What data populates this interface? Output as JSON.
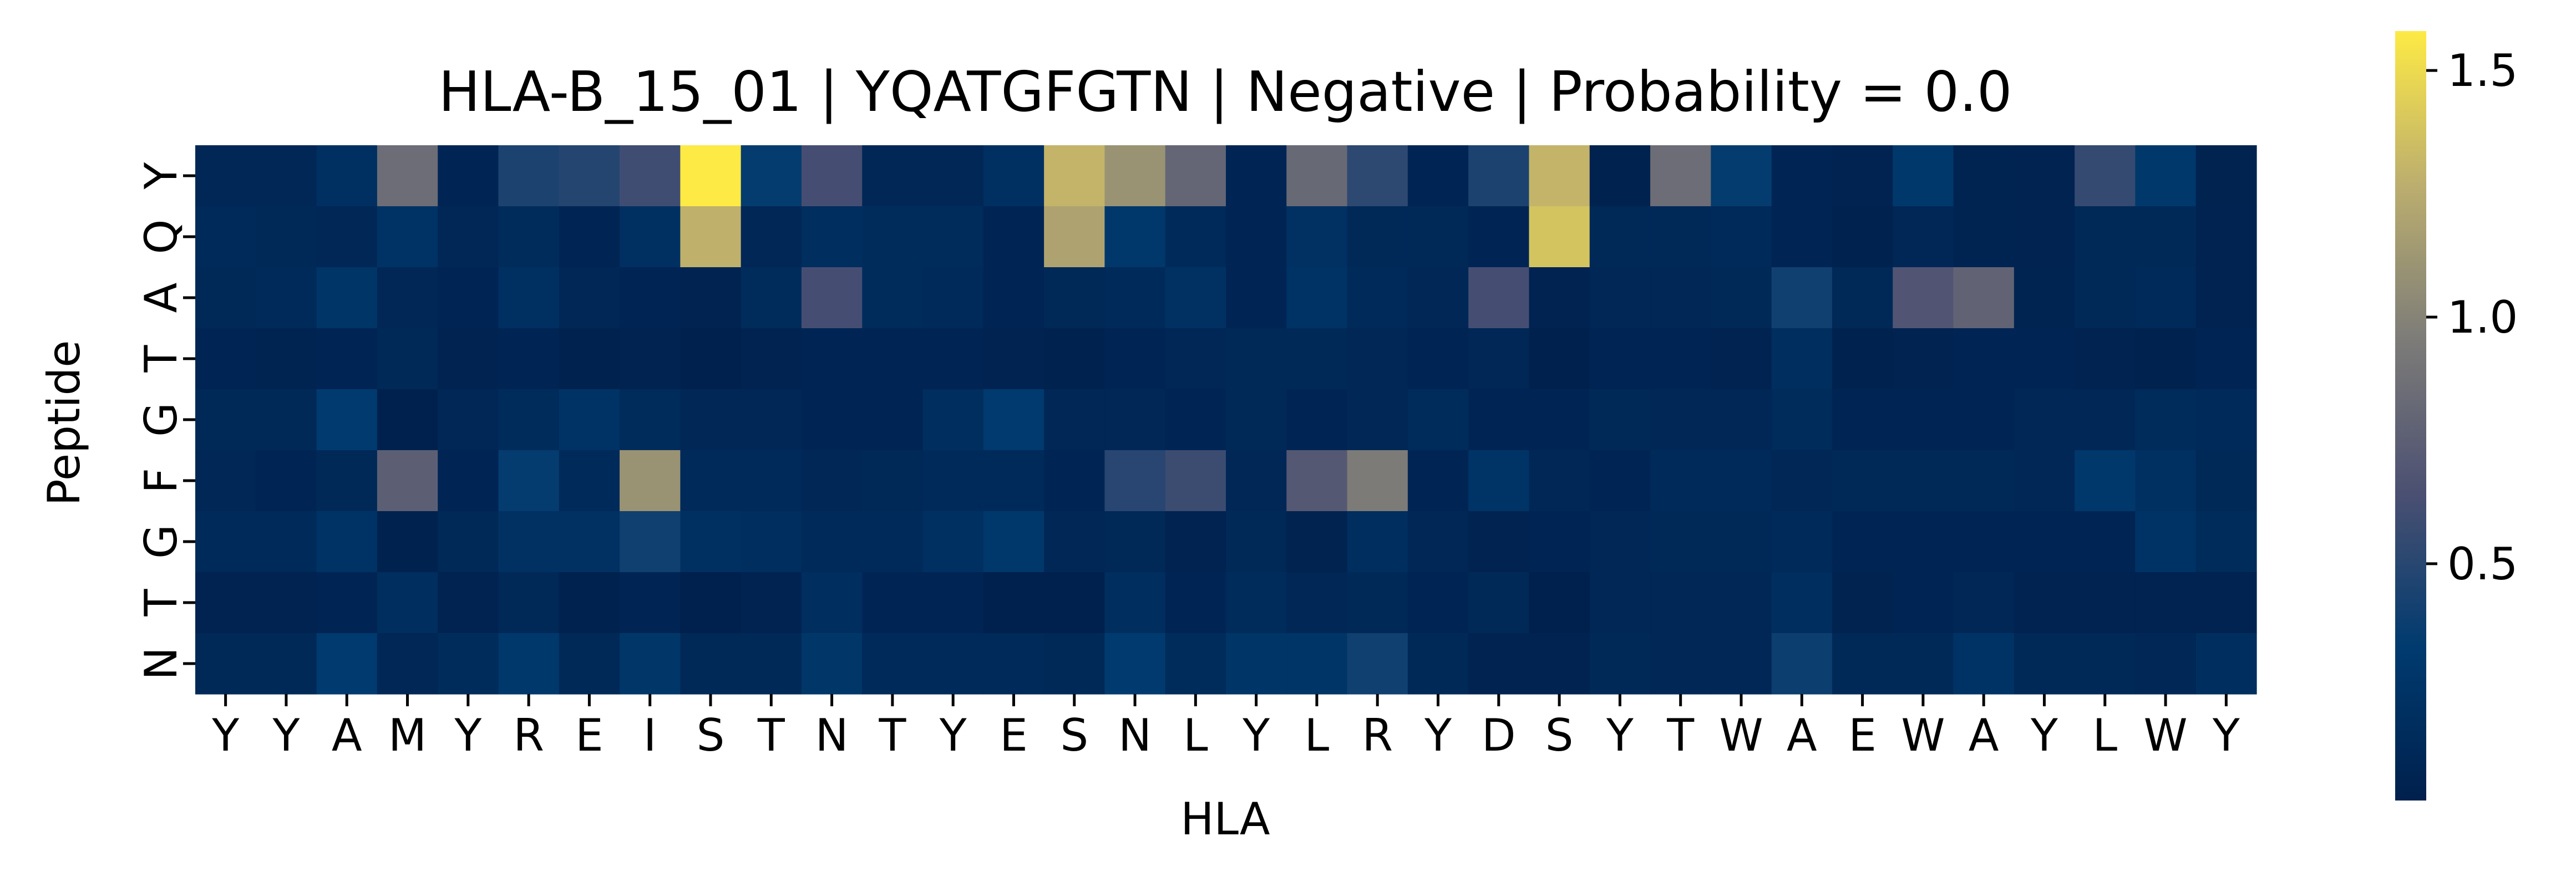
{
  "chart_data": {
    "type": "heatmap",
    "title": "HLA-B_15_01 | YQATGFGTN | Negative | Probability = 0.0",
    "xlabel": "HLA",
    "ylabel": "Peptide",
    "x_categories": [
      "Y",
      "Y",
      "A",
      "M",
      "Y",
      "R",
      "E",
      "I",
      "S",
      "T",
      "N",
      "T",
      "Y",
      "E",
      "S",
      "N",
      "L",
      "Y",
      "L",
      "R",
      "Y",
      "D",
      "S",
      "Y",
      "T",
      "W",
      "A",
      "E",
      "W",
      "A",
      "Y",
      "L",
      "W",
      "Y"
    ],
    "y_categories": [
      "Y",
      "Q",
      "A",
      "T",
      "G",
      "F",
      "G",
      "T",
      "N"
    ],
    "colormap": "cividis",
    "colorbar": {
      "range": [
        0.02,
        1.58
      ],
      "ticks": [
        0.5,
        1.0,
        1.5
      ],
      "tick_labels": [
        "0.5",
        "1.0",
        "1.5"
      ]
    },
    "values": [
      [
        0.1,
        0.1,
        0.2,
        0.85,
        0.08,
        0.45,
        0.48,
        0.6,
        1.58,
        0.35,
        0.62,
        0.1,
        0.1,
        0.2,
        1.3,
        1.1,
        0.8,
        0.08,
        0.82,
        0.52,
        0.08,
        0.45,
        1.3,
        0.04,
        0.85,
        0.35,
        0.08,
        0.06,
        0.3,
        0.07,
        0.06,
        0.55,
        0.3,
        0.05
      ],
      [
        0.14,
        0.12,
        0.1,
        0.24,
        0.1,
        0.16,
        0.08,
        0.2,
        1.28,
        0.1,
        0.18,
        0.16,
        0.16,
        0.08,
        1.2,
        0.3,
        0.14,
        0.08,
        0.22,
        0.12,
        0.12,
        0.08,
        1.38,
        0.12,
        0.12,
        0.14,
        0.08,
        0.04,
        0.1,
        0.07,
        0.06,
        0.12,
        0.12,
        0.06
      ],
      [
        0.12,
        0.14,
        0.26,
        0.1,
        0.08,
        0.2,
        0.1,
        0.08,
        0.06,
        0.16,
        0.62,
        0.16,
        0.14,
        0.08,
        0.12,
        0.14,
        0.22,
        0.08,
        0.24,
        0.14,
        0.1,
        0.62,
        0.06,
        0.1,
        0.1,
        0.12,
        0.4,
        0.12,
        0.68,
        0.78,
        0.07,
        0.12,
        0.14,
        0.06
      ],
      [
        0.08,
        0.07,
        0.08,
        0.12,
        0.06,
        0.08,
        0.04,
        0.06,
        0.03,
        0.06,
        0.08,
        0.08,
        0.08,
        0.06,
        0.04,
        0.08,
        0.1,
        0.12,
        0.12,
        0.1,
        0.08,
        0.1,
        0.03,
        0.08,
        0.08,
        0.06,
        0.18,
        0.04,
        0.06,
        0.08,
        0.08,
        0.06,
        0.04,
        0.08
      ],
      [
        0.12,
        0.12,
        0.32,
        0.03,
        0.1,
        0.16,
        0.24,
        0.16,
        0.1,
        0.1,
        0.08,
        0.08,
        0.18,
        0.32,
        0.1,
        0.1,
        0.08,
        0.12,
        0.08,
        0.1,
        0.16,
        0.08,
        0.08,
        0.12,
        0.1,
        0.1,
        0.16,
        0.08,
        0.08,
        0.08,
        0.1,
        0.1,
        0.16,
        0.14
      ],
      [
        0.1,
        0.08,
        0.12,
        0.75,
        0.08,
        0.35,
        0.14,
        1.1,
        0.14,
        0.14,
        0.1,
        0.12,
        0.14,
        0.14,
        0.08,
        0.5,
        0.58,
        0.1,
        0.7,
        0.95,
        0.08,
        0.25,
        0.1,
        0.08,
        0.14,
        0.14,
        0.1,
        0.12,
        0.12,
        0.12,
        0.1,
        0.3,
        0.2,
        0.12
      ],
      [
        0.14,
        0.14,
        0.24,
        0.04,
        0.12,
        0.22,
        0.22,
        0.4,
        0.2,
        0.18,
        0.14,
        0.14,
        0.2,
        0.3,
        0.1,
        0.12,
        0.06,
        0.12,
        0.05,
        0.18,
        0.1,
        0.06,
        0.08,
        0.1,
        0.12,
        0.12,
        0.14,
        0.08,
        0.08,
        0.08,
        0.08,
        0.08,
        0.24,
        0.16
      ],
      [
        0.06,
        0.06,
        0.08,
        0.18,
        0.06,
        0.12,
        0.04,
        0.08,
        0.02,
        0.06,
        0.18,
        0.08,
        0.08,
        0.03,
        0.03,
        0.18,
        0.08,
        0.16,
        0.1,
        0.12,
        0.08,
        0.12,
        0.02,
        0.1,
        0.1,
        0.1,
        0.18,
        0.05,
        0.08,
        0.1,
        0.06,
        0.06,
        0.06,
        0.06
      ],
      [
        0.12,
        0.12,
        0.32,
        0.1,
        0.16,
        0.3,
        0.12,
        0.28,
        0.12,
        0.12,
        0.28,
        0.14,
        0.14,
        0.14,
        0.12,
        0.32,
        0.16,
        0.26,
        0.26,
        0.4,
        0.12,
        0.06,
        0.06,
        0.12,
        0.1,
        0.1,
        0.38,
        0.12,
        0.12,
        0.24,
        0.12,
        0.12,
        0.1,
        0.18
      ]
    ]
  }
}
